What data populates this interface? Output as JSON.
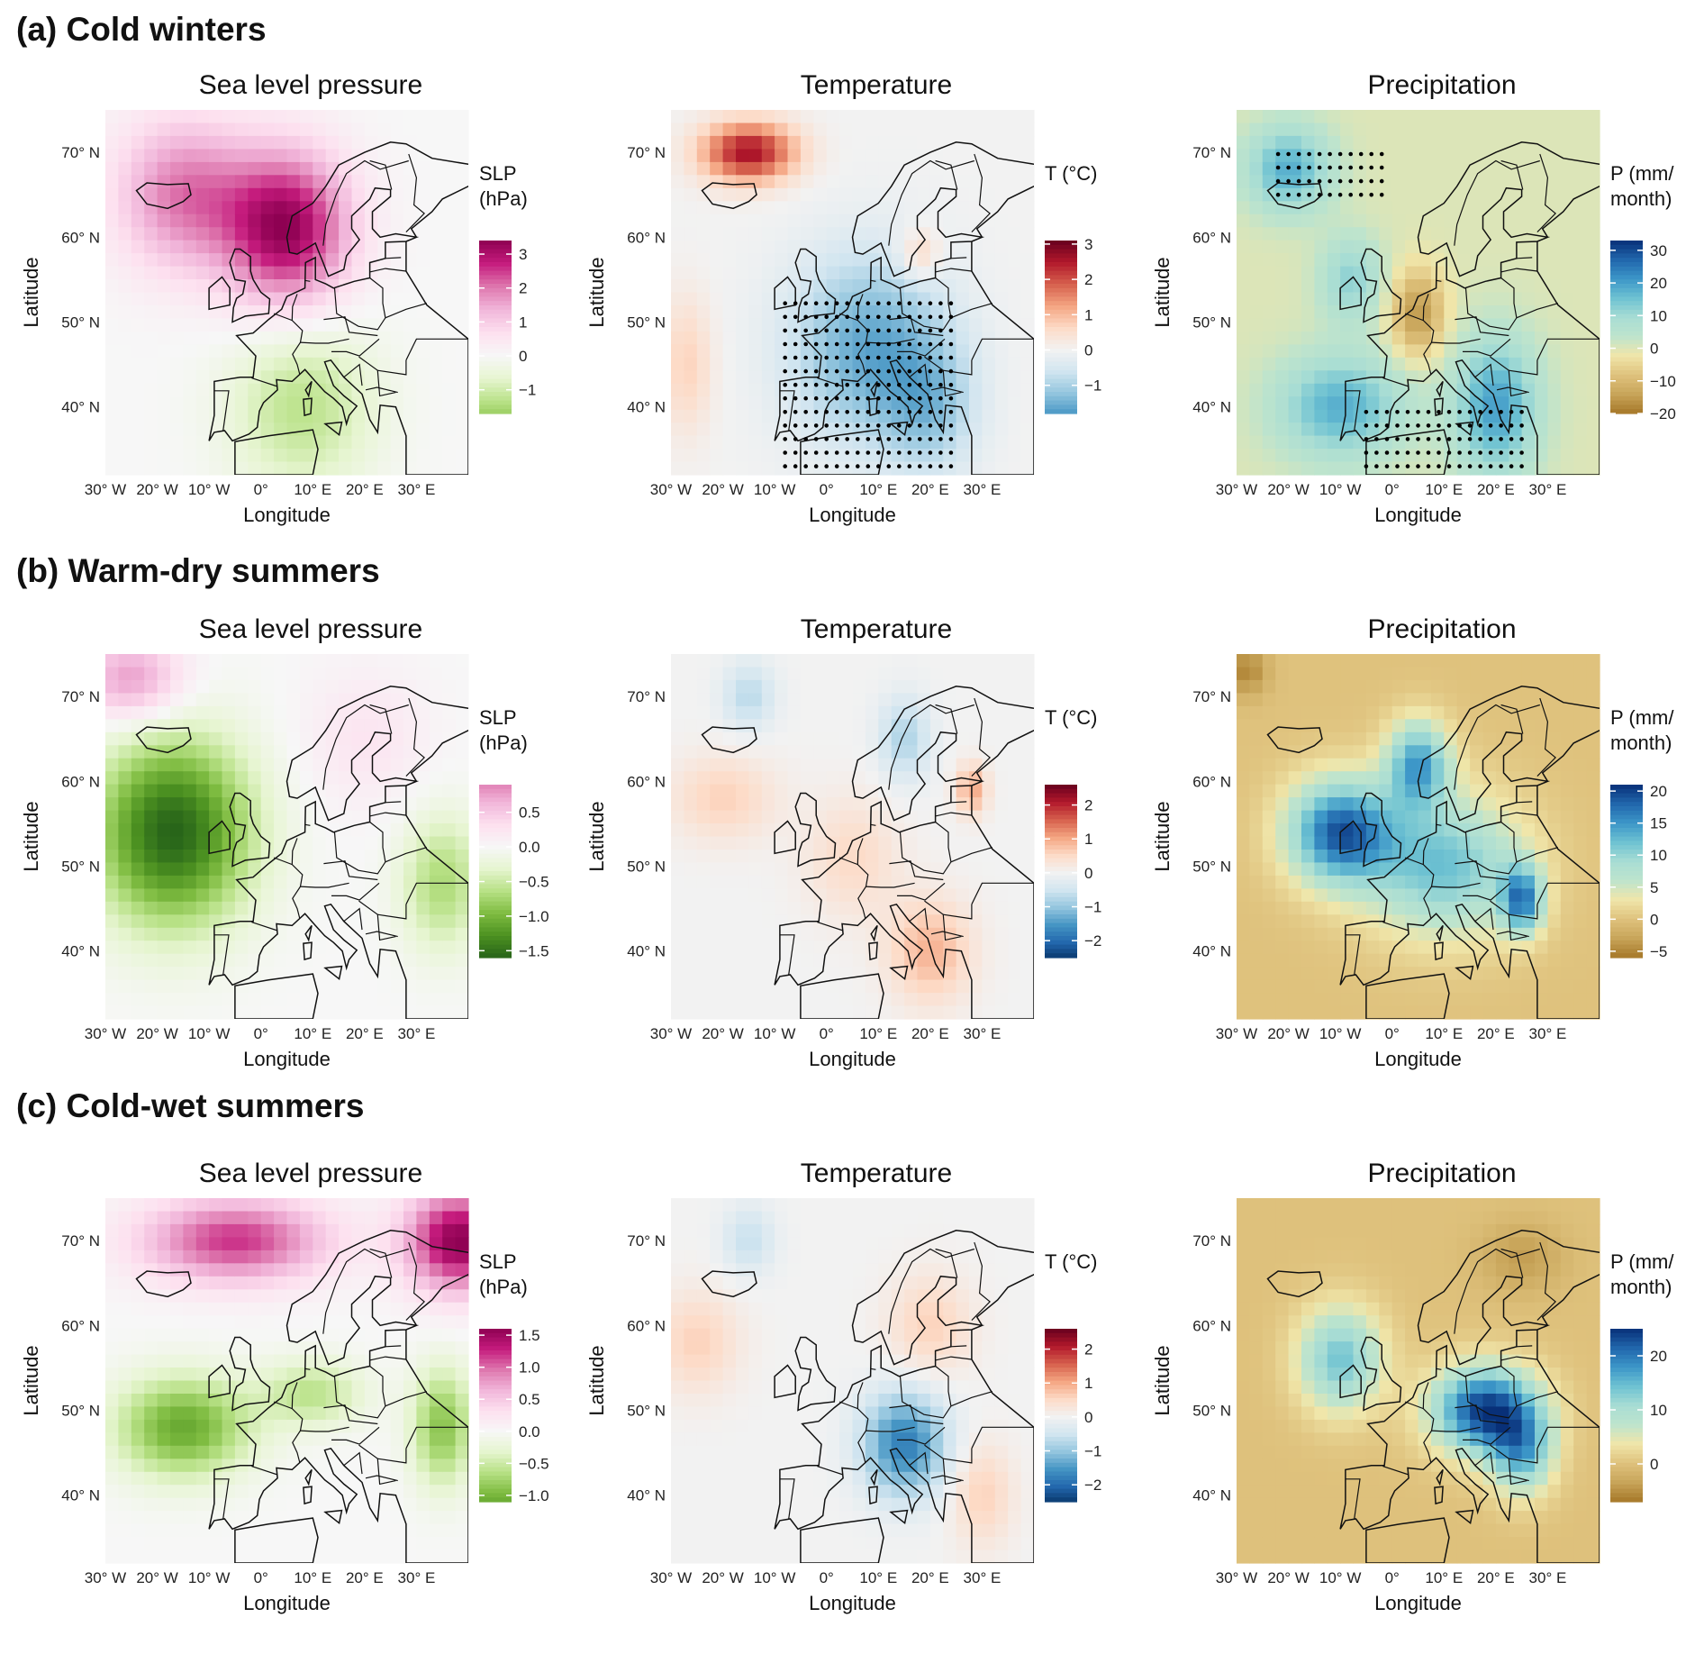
{
  "rows": [
    {
      "label": "(a) Cold winters"
    },
    {
      "label": "(b) Warm-dry summers"
    },
    {
      "label": "(c) Cold-wet summers"
    }
  ],
  "axes": {
    "xlabel": "Longitude",
    "ylabel": "Latitude",
    "xticks": [
      "30° W",
      "20° W",
      "10° W",
      "0°",
      "10° E",
      "20° E",
      "30° E"
    ],
    "yticks": [
      "70° N",
      "60° N",
      "50° N",
      "40° N"
    ],
    "lon_range": [
      -30,
      40
    ],
    "lat_range": [
      32,
      75
    ]
  },
  "chart_data": [
    {
      "type": "heatmap",
      "row": 0,
      "title": "Sea level pressure",
      "legend_title": [
        "SLP",
        "(hPa)"
      ],
      "scale": "prgn",
      "legend_ticks": [
        "3",
        "2",
        "1",
        "0",
        "−1"
      ],
      "legend_values": [
        3,
        2,
        1,
        0,
        -1
      ],
      "range": [
        -1.7,
        3.4
      ],
      "centers": [
        [
          5,
          61,
          3.3,
          1.2,
          0.9
        ],
        [
          -15,
          65,
          2.0,
          1.3,
          0.9
        ],
        [
          8,
          40,
          -1.3,
          1.4,
          1.0
        ]
      ],
      "stipple": [],
      "plus": []
    },
    {
      "type": "heatmap",
      "row": 0,
      "title": "Temperature",
      "legend_title": [
        "T (°C)"
      ],
      "scale": "rdbu",
      "legend_ticks": [
        "3",
        "2",
        "1",
        "0",
        "−1"
      ],
      "legend_values": [
        3,
        2,
        1,
        0,
        -1
      ],
      "range": [
        -1.8,
        3.1
      ],
      "centers": [
        [
          -15,
          70,
          2.6,
          0.9,
          0.35
        ],
        [
          8,
          47,
          -1.6,
          1.5,
          1.1
        ],
        [
          20,
          40,
          -1.0,
          0.9,
          0.8
        ],
        [
          -27,
          45,
          0.7,
          0.5,
          0.8
        ],
        [
          18,
          58,
          0.8,
          0.4,
          0.3
        ]
      ],
      "stipple": [
        [
          -8,
          25,
          33,
          53
        ]
      ],
      "plus": []
    },
    {
      "type": "heatmap",
      "row": 0,
      "title": "Precipitation",
      "legend_title": [
        "P (mm/",
        "month)"
      ],
      "scale": "brbg",
      "legend_ticks": [
        "30",
        "20",
        "10",
        "0",
        "−10",
        "−20"
      ],
      "legend_values": [
        30,
        20,
        10,
        0,
        -10,
        -20
      ],
      "range": [
        -20,
        33
      ],
      "centers": [
        [
          5,
          51,
          -16,
          0.5,
          0.5
        ],
        [
          -10,
          40,
          18,
          1.2,
          0.6
        ],
        [
          20,
          40,
          20,
          0.8,
          0.8
        ],
        [
          -20,
          68,
          18,
          0.8,
          0.5
        ],
        [
          -8,
          55,
          12,
          0.6,
          0.5
        ]
      ],
      "stipple": [
        [
          -5,
          25,
          33,
          40
        ],
        [
          -22,
          -2,
          65,
          71
        ]
      ],
      "plus": []
    },
    {
      "type": "heatmap",
      "row": 1,
      "title": "Sea level pressure",
      "legend_title": [
        "SLP",
        "(hPa)"
      ],
      "scale": "prgn",
      "legend_ticks": [
        "0.5",
        "0.0",
        "−0.5",
        "−1.0",
        "−1.5"
      ],
      "legend_values": [
        0.5,
        0,
        -0.5,
        -1,
        -1.5
      ],
      "range": [
        -1.6,
        0.9
      ],
      "centers": [
        [
          -17,
          54,
          -1.6,
          1.5,
          1.1
        ],
        [
          35,
          48,
          -0.7,
          0.8,
          0.8
        ],
        [
          -25,
          72,
          0.8,
          1.0,
          0.5
        ],
        [
          20,
          65,
          0.25,
          1.2,
          0.8
        ]
      ],
      "stipple": [],
      "plus": []
    },
    {
      "type": "heatmap",
      "row": 1,
      "title": "Temperature",
      "legend_title": [
        "T (°C)"
      ],
      "scale": "rdbu",
      "legend_ticks": [
        "2",
        "1",
        "0",
        "−1",
        "−2"
      ],
      "legend_values": [
        2,
        1,
        0,
        -1,
        -2
      ],
      "range": [
        -2.5,
        2.6
      ],
      "centers": [
        [
          20,
          40,
          0.9,
          0.8,
          0.6
        ],
        [
          5,
          51,
          0.5,
          0.9,
          0.7
        ],
        [
          -20,
          58,
          0.6,
          1.0,
          0.5
        ],
        [
          15,
          65,
          -0.8,
          0.5,
          0.5
        ],
        [
          -15,
          70,
          -0.7,
          0.5,
          0.4
        ],
        [
          28,
          59,
          1.0,
          0.3,
          0.3
        ]
      ],
      "stipple": [],
      "plus": []
    },
    {
      "type": "heatmap",
      "row": 1,
      "title": "Precipitation",
      "legend_title": [
        "P (mm/",
        "month)"
      ],
      "scale": "brbg",
      "legend_ticks": [
        "20",
        "15",
        "10",
        "5",
        "0",
        "−5"
      ],
      "legend_values": [
        20,
        15,
        10,
        5,
        0,
        -5
      ],
      "range": [
        -6,
        21
      ],
      "centers": [
        [
          -10,
          54,
          18,
          1.0,
          0.6
        ],
        [
          10,
          50,
          12,
          1.5,
          0.8
        ],
        [
          25,
          46,
          15,
          0.4,
          0.4
        ],
        [
          5,
          62,
          14,
          0.6,
          0.5
        ],
        [
          -28,
          73,
          -5,
          0.4,
          0.3
        ]
      ],
      "stipple": [],
      "plus": []
    },
    {
      "type": "heatmap",
      "row": 2,
      "title": "Sea level pressure",
      "legend_title": [
        "SLP",
        "(hPa)"
      ],
      "scale": "prgn",
      "legend_ticks": [
        "1.5",
        "1.0",
        "0.5",
        "0.0",
        "−0.5",
        "−1.0"
      ],
      "legend_values": [
        1.5,
        1,
        0.5,
        0,
        -0.5,
        -1
      ],
      "range": [
        -1.1,
        1.6
      ],
      "centers": [
        [
          38,
          70,
          1.6,
          1.0,
          0.6
        ],
        [
          -5,
          70,
          1.2,
          1.8,
          0.5
        ],
        [
          -15,
          48,
          -1.1,
          1.3,
          0.6
        ],
        [
          35,
          48,
          -0.9,
          0.6,
          0.7
        ],
        [
          10,
          52,
          -0.6,
          1.0,
          0.4
        ]
      ],
      "stipple": [],
      "plus": []
    },
    {
      "type": "heatmap",
      "row": 2,
      "title": "Temperature",
      "legend_title": [
        "T (°C)"
      ],
      "scale": "rdbu",
      "legend_ticks": [
        "2",
        "1",
        "0",
        "−1",
        "−2"
      ],
      "legend_values": [
        2,
        1,
        0,
        -1,
        -2
      ],
      "range": [
        -2.5,
        2.6
      ],
      "centers": [
        [
          15,
          46,
          -1.8,
          0.8,
          0.6
        ],
        [
          -25,
          58,
          0.6,
          0.8,
          0.6
        ],
        [
          30,
          40,
          0.6,
          0.6,
          0.6
        ],
        [
          20,
          60,
          0.6,
          0.8,
          0.6
        ],
        [
          -15,
          70,
          -0.6,
          0.5,
          0.4
        ]
      ],
      "stipple": [],
      "plus": []
    },
    {
      "type": "heatmap",
      "row": 2,
      "title": "Precipitation",
      "legend_title": [
        "P (mm/",
        "month)"
      ],
      "scale": "brbg",
      "legend_ticks": [
        "20",
        "10",
        "0"
      ],
      "legend_values": [
        20,
        10,
        0
      ],
      "range": [
        -7,
        25
      ],
      "centers": [
        [
          18,
          50,
          24,
          1.0,
          0.5
        ],
        [
          -10,
          56,
          14,
          0.8,
          0.6
        ],
        [
          25,
          45,
          14,
          0.6,
          0.5
        ],
        [
          25,
          68,
          -4,
          0.8,
          0.4
        ]
      ],
      "stipple": [],
      "plus": []
    }
  ]
}
